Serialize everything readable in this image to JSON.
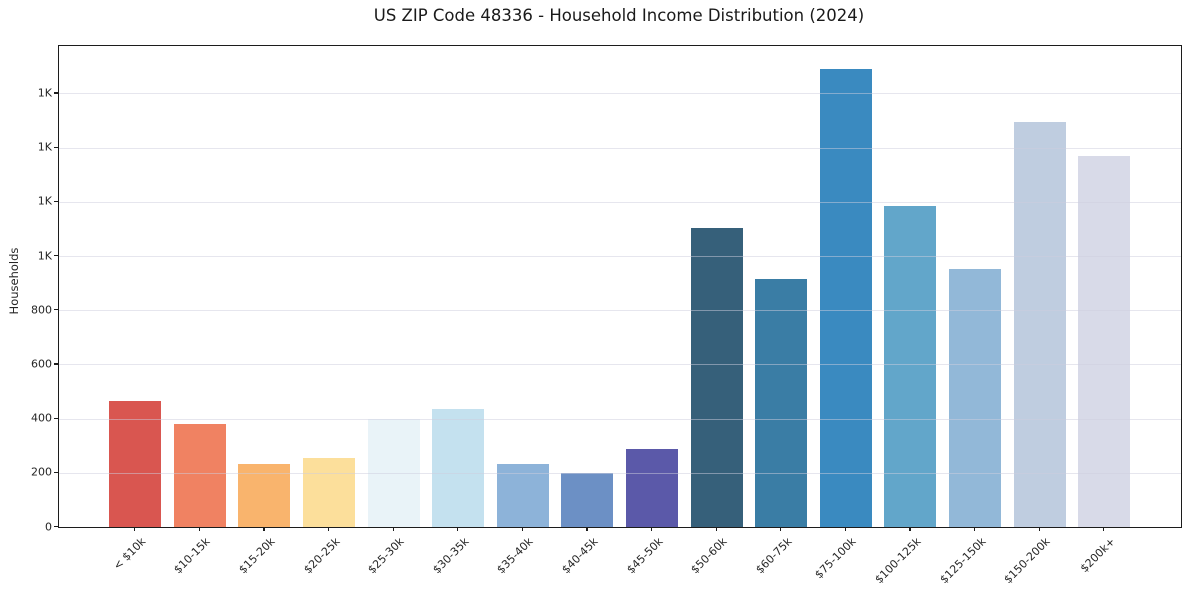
{
  "figure": {
    "title": "US ZIP Code 48336 - Household Income Distribution (2024)"
  },
  "chart_data": {
    "type": "bar",
    "title": "US ZIP Code 48336 - Household Income Distribution (2024)",
    "xlabel": "",
    "ylabel": "Households",
    "categories": [
      "< $10k",
      "$10-15k",
      "$15-20k",
      "$20-25k",
      "$25-30k",
      "$30-35k",
      "$35-40k",
      "$40-45k",
      "$45-50k",
      "$50-60k",
      "$60-75k",
      "$75-100k",
      "$100-125k",
      "$125-150k",
      "$150-200k",
      "$200k+"
    ],
    "values": [
      466,
      381,
      231,
      254,
      397,
      434,
      234,
      198,
      289,
      1103,
      916,
      1691,
      1184,
      953,
      1496,
      1369
    ],
    "bar_colors": [
      "#d95650",
      "#f08262",
      "#f9b46d",
      "#fcdf9b",
      "#e9f3f8",
      "#c4e1ef",
      "#8db3d9",
      "#6c90c5",
      "#5b59a9",
      "#36607a",
      "#3a7da5",
      "#3a8ac0",
      "#62a6ca",
      "#92b8d8",
      "#bfcde0",
      "#d8dae8"
    ],
    "ylim": [
      0,
      1775
    ],
    "yticks": [
      {
        "value": 0,
        "label": "0"
      },
      {
        "value": 200,
        "label": "200"
      },
      {
        "value": 400,
        "label": "400"
      },
      {
        "value": 600,
        "label": "600"
      },
      {
        "value": 800,
        "label": "800"
      },
      {
        "value": 1000,
        "label": "1K"
      },
      {
        "value": 1200,
        "label": "1K"
      },
      {
        "value": 1400,
        "label": "1K"
      },
      {
        "value": 1600,
        "label": "1K"
      }
    ],
    "grid": "horizontal-only",
    "legend": "none",
    "colors": {
      "spine": "#1c1c1c",
      "gridline": "#e7e7ef",
      "tick_label": "#262626",
      "background": "#ffffff"
    }
  }
}
